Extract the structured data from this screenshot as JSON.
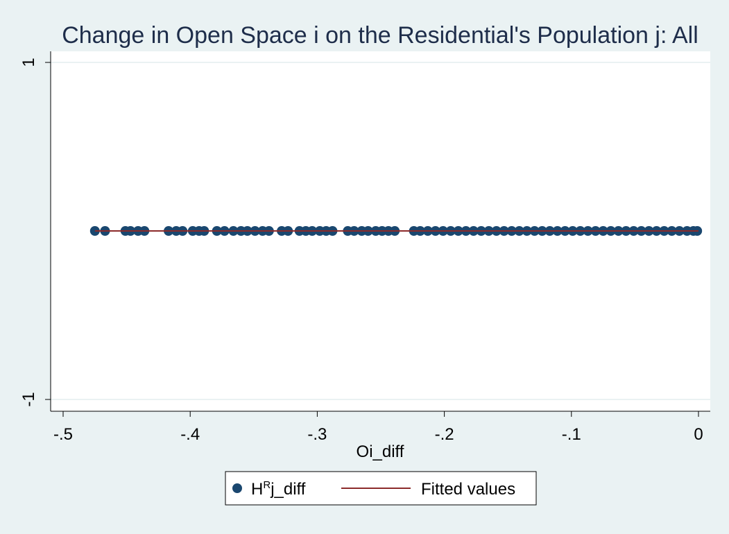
{
  "chart_data": {
    "type": "scatter",
    "title": "Change in Open Space i on the Residential's Population j: All",
    "xlabel": "Oi_diff",
    "ylabel": "",
    "xlim": [
      -0.5,
      0
    ],
    "ylim": [
      -1,
      1
    ],
    "x_ticks": [
      -0.5,
      -0.4,
      -0.3,
      -0.2,
      -0.1,
      0
    ],
    "x_tick_labels": [
      "-.5",
      "-.4",
      "-.3",
      "-.2",
      "-.1",
      "0"
    ],
    "y_ticks": [
      1,
      -1
    ],
    "y_tick_labels": [
      "1",
      "-1"
    ],
    "grid": true,
    "legend_position": "bottom",
    "series": [
      {
        "name": "HRj_diff",
        "legend_main": "H",
        "legend_sup": "R",
        "legend_rest": "j_diff",
        "kind": "scatter",
        "color": "#1a476f",
        "points": [
          [
            -0.475,
            0
          ],
          [
            -0.467,
            0
          ],
          [
            -0.451,
            0
          ],
          [
            -0.447,
            0
          ],
          [
            -0.441,
            0
          ],
          [
            -0.436,
            0
          ],
          [
            -0.417,
            0
          ],
          [
            -0.411,
            0
          ],
          [
            -0.406,
            0
          ],
          [
            -0.398,
            0
          ],
          [
            -0.393,
            0
          ],
          [
            -0.389,
            0
          ],
          [
            -0.379,
            0
          ],
          [
            -0.373,
            0
          ],
          [
            -0.366,
            0
          ],
          [
            -0.36,
            0
          ],
          [
            -0.355,
            0
          ],
          [
            -0.349,
            0
          ],
          [
            -0.343,
            0
          ],
          [
            -0.338,
            0
          ],
          [
            -0.328,
            0
          ],
          [
            -0.323,
            0
          ],
          [
            -0.314,
            0
          ],
          [
            -0.309,
            0
          ],
          [
            -0.304,
            0
          ],
          [
            -0.298,
            0
          ],
          [
            -0.293,
            0
          ],
          [
            -0.288,
            0
          ],
          [
            -0.276,
            0
          ],
          [
            -0.271,
            0
          ],
          [
            -0.265,
            0
          ],
          [
            -0.26,
            0
          ],
          [
            -0.254,
            0
          ],
          [
            -0.249,
            0
          ],
          [
            -0.244,
            0
          ],
          [
            -0.239,
            0
          ],
          [
            -0.224,
            0
          ],
          [
            -0.219,
            0
          ],
          [
            -0.213,
            0
          ],
          [
            -0.207,
            0
          ],
          [
            -0.201,
            0
          ],
          [
            -0.195,
            0
          ],
          [
            -0.189,
            0
          ],
          [
            -0.183,
            0
          ],
          [
            -0.177,
            0
          ],
          [
            -0.171,
            0
          ],
          [
            -0.165,
            0
          ],
          [
            -0.159,
            0
          ],
          [
            -0.153,
            0
          ],
          [
            -0.147,
            0
          ],
          [
            -0.141,
            0
          ],
          [
            -0.135,
            0
          ],
          [
            -0.129,
            0
          ],
          [
            -0.123,
            0
          ],
          [
            -0.117,
            0
          ],
          [
            -0.111,
            0
          ],
          [
            -0.105,
            0
          ],
          [
            -0.099,
            0
          ],
          [
            -0.093,
            0
          ],
          [
            -0.087,
            0
          ],
          [
            -0.081,
            0
          ],
          [
            -0.075,
            0
          ],
          [
            -0.069,
            0
          ],
          [
            -0.063,
            0
          ],
          [
            -0.057,
            0
          ],
          [
            -0.051,
            0
          ],
          [
            -0.045,
            0
          ],
          [
            -0.039,
            0
          ],
          [
            -0.033,
            0
          ],
          [
            -0.027,
            0
          ],
          [
            -0.021,
            0
          ],
          [
            -0.015,
            0
          ],
          [
            -0.009,
            0
          ],
          [
            -0.004,
            0
          ],
          [
            -0.001,
            0
          ]
        ]
      },
      {
        "name": "Fitted values",
        "kind": "line",
        "color": "#8b2a2a",
        "points": [
          [
            -0.475,
            0
          ],
          [
            0,
            0
          ]
        ]
      }
    ]
  }
}
